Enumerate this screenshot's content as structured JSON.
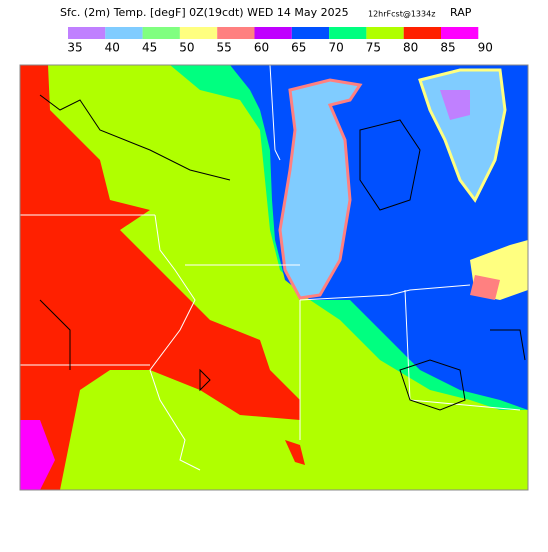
{
  "header": {
    "title": "Sfc. (2m) Temp. [degF] 0Z(19cdt) WED 14 May 2025",
    "forecast": "12hrFcst@1334z",
    "model": "RAP"
  },
  "colorbar": {
    "labels": [
      35,
      40,
      45,
      50,
      55,
      60,
      65,
      70,
      75,
      80,
      85,
      90
    ],
    "colors": [
      "#c080ff",
      "#80ccff",
      "#80ff80",
      "#ffff80",
      "#ff8080",
      "#c000ff",
      "#0050ff",
      "#00ff80",
      "#b0ff00",
      "#ff2000",
      "#ff00ff"
    ]
  }
}
